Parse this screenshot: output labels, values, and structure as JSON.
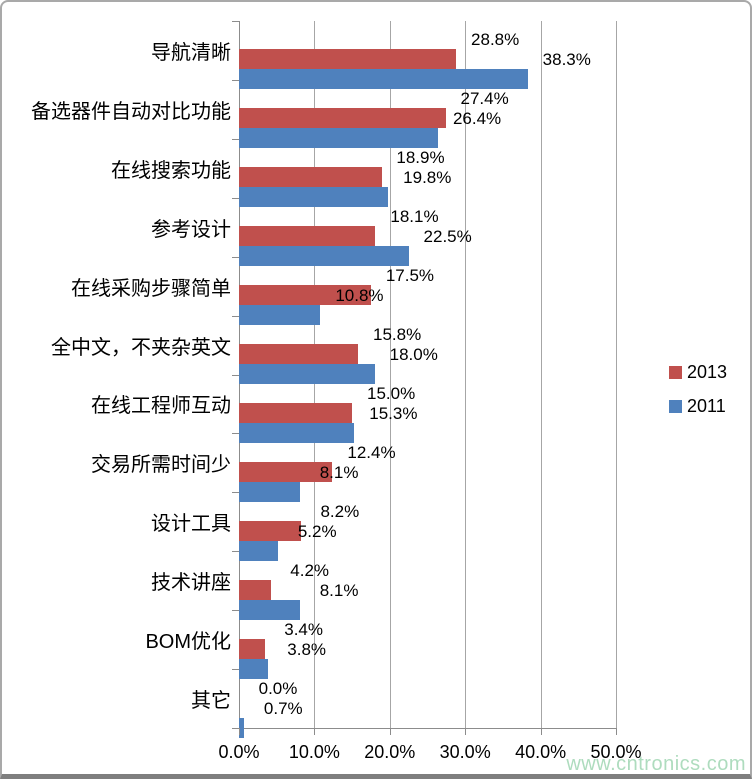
{
  "chart_data": {
    "type": "bar",
    "orientation": "horizontal",
    "title": "",
    "categories": [
      "导航清晰",
      "备选器件自动对比功能",
      "在线搜索功能",
      "参考设计",
      "在线采购步骤简单",
      "全中文，不夹杂英文",
      "在线工程师互动",
      "交易所需时间少",
      "设计工具",
      "技术讲座",
      "BOM优化",
      "其它"
    ],
    "series": [
      {
        "name": "2013",
        "color": "#C0504D",
        "values": [
          28.8,
          27.4,
          18.9,
          18.1,
          17.5,
          15.8,
          15.0,
          12.4,
          8.2,
          4.2,
          3.4,
          0.0
        ]
      },
      {
        "name": "2011",
        "color": "#4F81BD",
        "values": [
          38.3,
          26.4,
          19.8,
          22.5,
          10.8,
          18.0,
          15.3,
          8.1,
          5.2,
          8.1,
          3.8,
          0.7
        ]
      }
    ],
    "data_label_suffix": "%",
    "x_ticks": [
      "0.0%",
      "10.0%",
      "20.0%",
      "30.0%",
      "40.0%",
      "50.0%"
    ],
    "xlim": [
      0,
      50
    ],
    "grid": true,
    "legend_position": "right"
  },
  "legend": {
    "items": [
      {
        "label": "2013",
        "color": "#C0504D"
      },
      {
        "label": "2011",
        "color": "#4F81BD"
      }
    ]
  },
  "watermark": "www.cntronics.com",
  "colors": {
    "bar_2013": "#C0504D",
    "bar_2011": "#4F81BD",
    "gridline": "#a6a6a6",
    "axis": "#8c8c8c",
    "frame_border": "#a9a9a9",
    "frame_bottom": "#7f7f7f",
    "watermark": "#aedcbe",
    "text": "#000000",
    "background": "#ffffff"
  }
}
